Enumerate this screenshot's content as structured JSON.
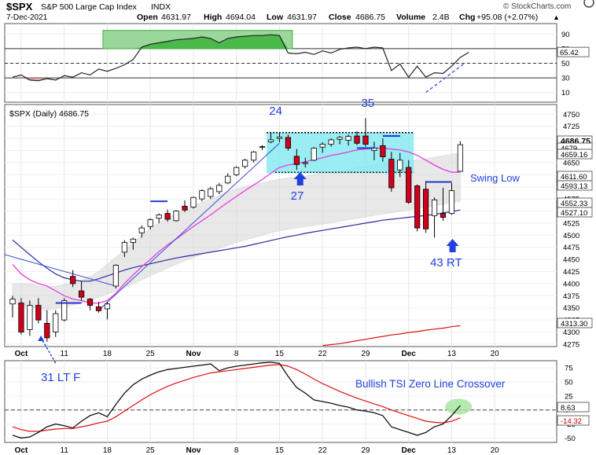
{
  "header": {
    "symbol": "$SPX",
    "name": "S&P 500 Large Cap Index",
    "exchange": "INDX",
    "date": "7-Dec-2021",
    "open_label": "Open",
    "open": "4631.97",
    "high_label": "High",
    "high": "4694.04",
    "low_label": "Low",
    "low": "4631.97",
    "close_label": "Close",
    "close": "4686.75",
    "volume_label": "Volume",
    "volume": "2.4B",
    "chg_label": "Chg",
    "chg": "+95.08 (+2.07%)",
    "arrow": "▲",
    "brand": "© StockCharts.com"
  },
  "colors": {
    "candle_up": "#ffffff",
    "candle_down": "#d0001a",
    "ma_fast": "#e83ce0",
    "ma_mid": "#2a2aa0",
    "ma_slow": "#e01010",
    "annotation": "#2040e0",
    "box_fill": "#7fe9f0",
    "rsi_zone": "#3cb43c"
  },
  "chart_data": [
    {
      "panel": "rsi",
      "type": "line",
      "ylim": [
        0,
        100
      ],
      "y_ticks": [
        90,
        70,
        50,
        30,
        10
      ],
      "reference_lines": [
        70,
        50,
        30
      ],
      "last_value_label": "65.42",
      "values": [
        31,
        34,
        27,
        26,
        29,
        27,
        33,
        31,
        37,
        34,
        42,
        39,
        43,
        48,
        55,
        72,
        76,
        78,
        80,
        82,
        83,
        84,
        86,
        84,
        78,
        84,
        86,
        87,
        88,
        88,
        89,
        88,
        64,
        63,
        65,
        62,
        67,
        64,
        69,
        71,
        72,
        70,
        72,
        71,
        40,
        49,
        31,
        46,
        31,
        37,
        36,
        46,
        58,
        65
      ]
    },
    {
      "panel": "price",
      "type": "candlestick",
      "title": "$SPX (Daily) 4686.75",
      "ylim": [
        4270,
        4770
      ],
      "y_ticks": [
        4750,
        4725,
        4700,
        4675,
        4650,
        4625,
        4600,
        4575,
        4550,
        4525,
        4500,
        4475,
        4450,
        4425,
        4400,
        4375,
        4350,
        4325,
        4300,
        4275
      ],
      "x_ticks": [
        "Oct",
        "11",
        "18",
        "25",
        "Nov",
        "8",
        "15",
        "22",
        "29",
        "Dec",
        "13",
        "20"
      ],
      "candles": [
        {
          "o": 4358,
          "h": 4375,
          "l": 4330,
          "c": 4368
        },
        {
          "o": 4360,
          "h": 4370,
          "l": 4295,
          "c": 4300
        },
        {
          "o": 4305,
          "h": 4365,
          "l": 4292,
          "c": 4355
        },
        {
          "o": 4355,
          "h": 4370,
          "l": 4318,
          "c": 4325
        },
        {
          "o": 4318,
          "h": 4345,
          "l": 4280,
          "c": 4288
        },
        {
          "o": 4300,
          "h": 4345,
          "l": 4290,
          "c": 4338
        },
        {
          "o": 4325,
          "h": 4370,
          "l": 4322,
          "c": 4365
        },
        {
          "o": 4415,
          "h": 4428,
          "l": 4393,
          "c": 4400
        },
        {
          "o": 4385,
          "h": 4405,
          "l": 4365,
          "c": 4372
        },
        {
          "o": 4368,
          "h": 4370,
          "l": 4345,
          "c": 4355
        },
        {
          "o": 4352,
          "h": 4362,
          "l": 4340,
          "c": 4344
        },
        {
          "o": 4348,
          "h": 4362,
          "l": 4326,
          "c": 4358
        },
        {
          "o": 4395,
          "h": 4440,
          "l": 4390,
          "c": 4438
        },
        {
          "o": 4465,
          "h": 4490,
          "l": 4455,
          "c": 4485
        },
        {
          "o": 4485,
          "h": 4495,
          "l": 4470,
          "c": 4492
        },
        {
          "o": 4505,
          "h": 4520,
          "l": 4495,
          "c": 4515
        },
        {
          "o": 4518,
          "h": 4535,
          "l": 4512,
          "c": 4532
        },
        {
          "o": 4535,
          "h": 4545,
          "l": 4525,
          "c": 4542
        },
        {
          "o": 4545,
          "h": 4553,
          "l": 4528,
          "c": 4533
        },
        {
          "o": 4530,
          "h": 4552,
          "l": 4528,
          "c": 4550
        },
        {
          "o": 4560,
          "h": 4572,
          "l": 4548,
          "c": 4552
        },
        {
          "o": 4558,
          "h": 4580,
          "l": 4555,
          "c": 4578
        },
        {
          "o": 4575,
          "h": 4595,
          "l": 4570,
          "c": 4592
        },
        {
          "o": 4580,
          "h": 4600,
          "l": 4575,
          "c": 4596
        },
        {
          "o": 4590,
          "h": 4608,
          "l": 4585,
          "c": 4603
        },
        {
          "o": 4608,
          "h": 4628,
          "l": 4605,
          "c": 4622
        },
        {
          "o": 4625,
          "h": 4642,
          "l": 4622,
          "c": 4640
        },
        {
          "o": 4642,
          "h": 4658,
          "l": 4638,
          "c": 4655
        },
        {
          "o": 4655,
          "h": 4674,
          "l": 4650,
          "c": 4672
        },
        {
          "o": 4682,
          "h": 4686,
          "l": 4676,
          "c": 4683
        },
        {
          "o": 4693,
          "h": 4712,
          "l": 4690,
          "c": 4697
        },
        {
          "o": 4700,
          "h": 4712,
          "l": 4692,
          "c": 4703
        },
        {
          "o": 4702,
          "h": 4708,
          "l": 4675,
          "c": 4680
        },
        {
          "o": 4663,
          "h": 4678,
          "l": 4635,
          "c": 4646
        },
        {
          "o": 4648,
          "h": 4660,
          "l": 4640,
          "c": 4650
        },
        {
          "o": 4655,
          "h": 4682,
          "l": 4653,
          "c": 4680
        },
        {
          "o": 4682,
          "h": 4692,
          "l": 4670,
          "c": 4688
        },
        {
          "o": 4688,
          "h": 4700,
          "l": 4683,
          "c": 4697
        },
        {
          "o": 4698,
          "h": 4705,
          "l": 4688,
          "c": 4702
        },
        {
          "o": 4696,
          "h": 4708,
          "l": 4685,
          "c": 4704
        },
        {
          "o": 4705,
          "h": 4715,
          "l": 4686,
          "c": 4690
        },
        {
          "o": 4705,
          "h": 4742,
          "l": 4683,
          "c": 4688
        },
        {
          "o": 4675,
          "h": 4693,
          "l": 4655,
          "c": 4680
        },
        {
          "o": 4685,
          "h": 4700,
          "l": 4652,
          "c": 4662
        },
        {
          "o": 4657,
          "h": 4672,
          "l": 4590,
          "c": 4598
        },
        {
          "o": 4635,
          "h": 4670,
          "l": 4620,
          "c": 4655
        },
        {
          "o": 4640,
          "h": 4655,
          "l": 4565,
          "c": 4568
        },
        {
          "o": 4602,
          "h": 4605,
          "l": 4508,
          "c": 4515
        },
        {
          "o": 4595,
          "h": 4612,
          "l": 4505,
          "c": 4513
        },
        {
          "o": 4540,
          "h": 4578,
          "l": 4495,
          "c": 4573
        },
        {
          "o": 4545,
          "h": 4598,
          "l": 4530,
          "c": 4537
        },
        {
          "o": 4545,
          "h": 4608,
          "l": 4542,
          "c": 4592
        },
        {
          "o": 4632,
          "h": 4694,
          "l": 4632,
          "c": 4687
        }
      ],
      "ma_fast": [
        4440,
        4420,
        4408,
        4400,
        4395,
        4385,
        4375,
        4368,
        4365,
        4360,
        4360,
        4365,
        4380,
        4400,
        4418,
        4435,
        4450,
        4466,
        4480,
        4492,
        4505,
        4518,
        4530,
        4542,
        4555,
        4568,
        4580,
        4592,
        4604,
        4615,
        4628,
        4640,
        4645,
        4648,
        4652,
        4656,
        4660,
        4665,
        4668,
        4672,
        4676,
        4678,
        4680,
        4680,
        4678,
        4676,
        4672,
        4665,
        4655,
        4645,
        4636,
        4630,
        4630
      ],
      "ma_mid": [
        4490,
        4475,
        4460,
        4445,
        4432,
        4420,
        4412,
        4408,
        4405,
        4405,
        4410,
        4416,
        4422,
        4428,
        4433,
        4437,
        4441,
        4445,
        4449,
        4453,
        4456,
        4459,
        4462,
        4465,
        4468,
        4471,
        4474,
        4477,
        4481,
        4485,
        4489,
        4493,
        4497,
        4500,
        4504,
        4507,
        4510,
        4513,
        4516,
        4519,
        4522,
        4525,
        4528,
        4531,
        4533,
        4535,
        4537,
        4539,
        4541,
        4543,
        4546,
        4549,
        4552
      ],
      "ma_slow_last_label": "4313.30",
      "ma_slow": [
        4272,
        4274,
        4276,
        4279,
        4282,
        4285,
        4288,
        4291,
        4294,
        4296,
        4299,
        4301,
        4304,
        4306,
        4308,
        4311,
        4313
      ],
      "band_upper": [
        4400,
        4400,
        4400,
        4395,
        4392,
        4395,
        4398,
        4402,
        4408,
        4415,
        4425,
        4440,
        4455,
        4470,
        4485,
        4500,
        4515,
        4525,
        4535,
        4545,
        4553,
        4560,
        4568,
        4575,
        4582,
        4590,
        4596,
        4600,
        4604,
        4608,
        4612,
        4616,
        4618,
        4620,
        4622,
        4625,
        4628,
        4630,
        4633,
        4636,
        4640,
        4643,
        4646,
        4648,
        4650,
        4652,
        4654,
        4656,
        4658,
        4661,
        4664,
        4667,
        4670
      ],
      "band_lower": [
        4360,
        4355,
        4352,
        4348,
        4345,
        4348,
        4352,
        4355,
        4360,
        4365,
        4372,
        4378,
        4385,
        4392,
        4400,
        4408,
        4416,
        4424,
        4432,
        4440,
        4447,
        4454,
        4460,
        4467,
        4473,
        4479,
        4485,
        4490,
        4495,
        4500,
        4505,
        4509,
        4512,
        4515,
        4518,
        4520,
        4523,
        4526,
        4529,
        4532,
        4535,
        4538,
        4541,
        4544,
        4546,
        4549,
        4552,
        4555,
        4558,
        4561,
        4564,
        4567,
        4570
      ],
      "value_labels": [
        "4686.75",
        "4679",
        "4659.16",
        "4611.60",
        "4593.13",
        "4552.33",
        "4527.10",
        "4313.30"
      ],
      "annotations": [
        "24",
        "27",
        "35",
        "43 RT",
        "Swing Low",
        "31 LT F"
      ]
    },
    {
      "panel": "tsi",
      "type": "line",
      "ylim": [
        -55,
        85
      ],
      "y_ticks": [
        75,
        50,
        25,
        0,
        -25,
        -50
      ],
      "title": "Bullish TSI Zero Line Crossover",
      "last_values": [
        "8.63",
        "-14.32"
      ],
      "tsi": [
        -45,
        -50,
        -48,
        -40,
        -30,
        -25,
        -28,
        -32,
        -20,
        -10,
        -5,
        -12,
        10,
        30,
        45,
        55,
        62,
        68,
        72,
        74,
        76,
        78,
        80,
        82,
        70,
        75,
        78,
        80,
        82,
        84,
        85,
        83,
        60,
        40,
        30,
        18,
        15,
        12,
        8,
        5,
        0,
        -2,
        -5,
        -10,
        -30,
        -35,
        -40,
        -45,
        -40,
        -30,
        -25,
        -10,
        8
      ],
      "signal": [
        -30,
        -35,
        -38,
        -38,
        -36,
        -34,
        -33,
        -33,
        -30,
        -27,
        -23,
        -20,
        -12,
        -2,
        8,
        18,
        27,
        35,
        42,
        48,
        53,
        58,
        62,
        66,
        68,
        70,
        72,
        74,
        76,
        78,
        80,
        81,
        78,
        72,
        64,
        55,
        47,
        40,
        33,
        27,
        21,
        16,
        11,
        6,
        0,
        -5,
        -10,
        -15,
        -20,
        -22,
        -23,
        -20,
        -14
      ]
    }
  ]
}
